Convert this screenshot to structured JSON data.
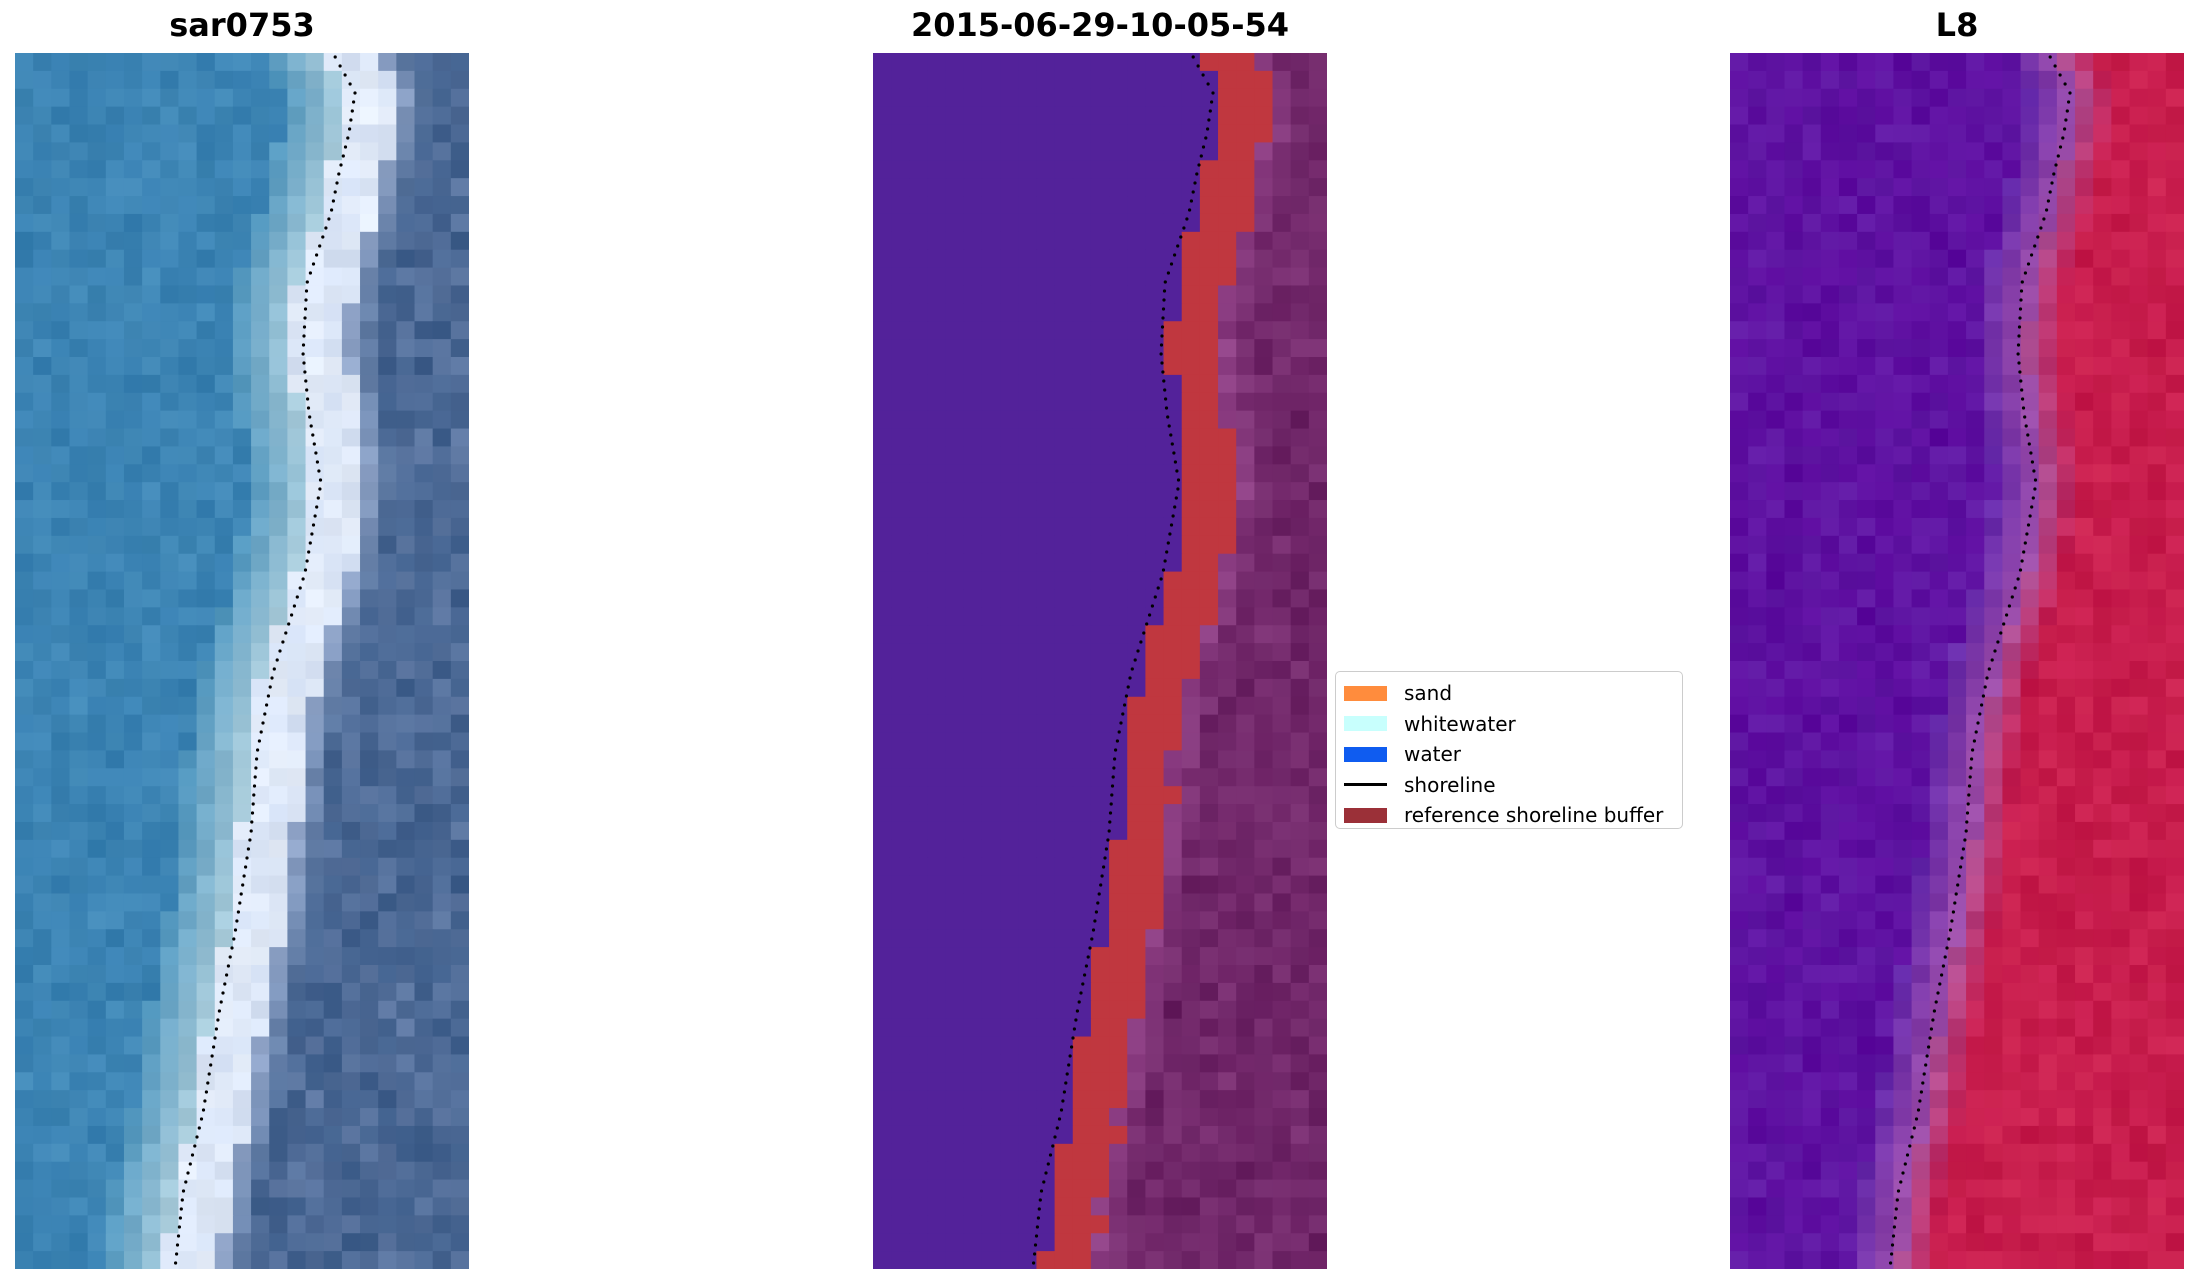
{
  "panels": [
    {
      "title": "sar0753"
    },
    {
      "title": "2015-06-29-10-05-54"
    },
    {
      "title": "L8"
    }
  ],
  "legend": {
    "entries": [
      {
        "label": "sand",
        "color": "#ff8c3d",
        "kind": "patch"
      },
      {
        "label": "whitewater",
        "color": "#c8fffd",
        "kind": "patch"
      },
      {
        "label": "water",
        "color": "#0f5cf0",
        "kind": "patch"
      },
      {
        "label": "shoreline",
        "color": "#000000",
        "kind": "line"
      },
      {
        "label": "reference shoreline buffer",
        "color": "#9b3038",
        "kind": "patch"
      }
    ]
  },
  "colors": {
    "sar_water": "#2f78ad",
    "sar_beach": "#e6eefa",
    "sar_land": "#3f5f8c",
    "classified_water": "#53229a",
    "classified_buffer": "#c0373f",
    "classified_land": "#6a2263",
    "l8_water": "#5c0a9e",
    "l8_land": "#c61a4c"
  }
}
